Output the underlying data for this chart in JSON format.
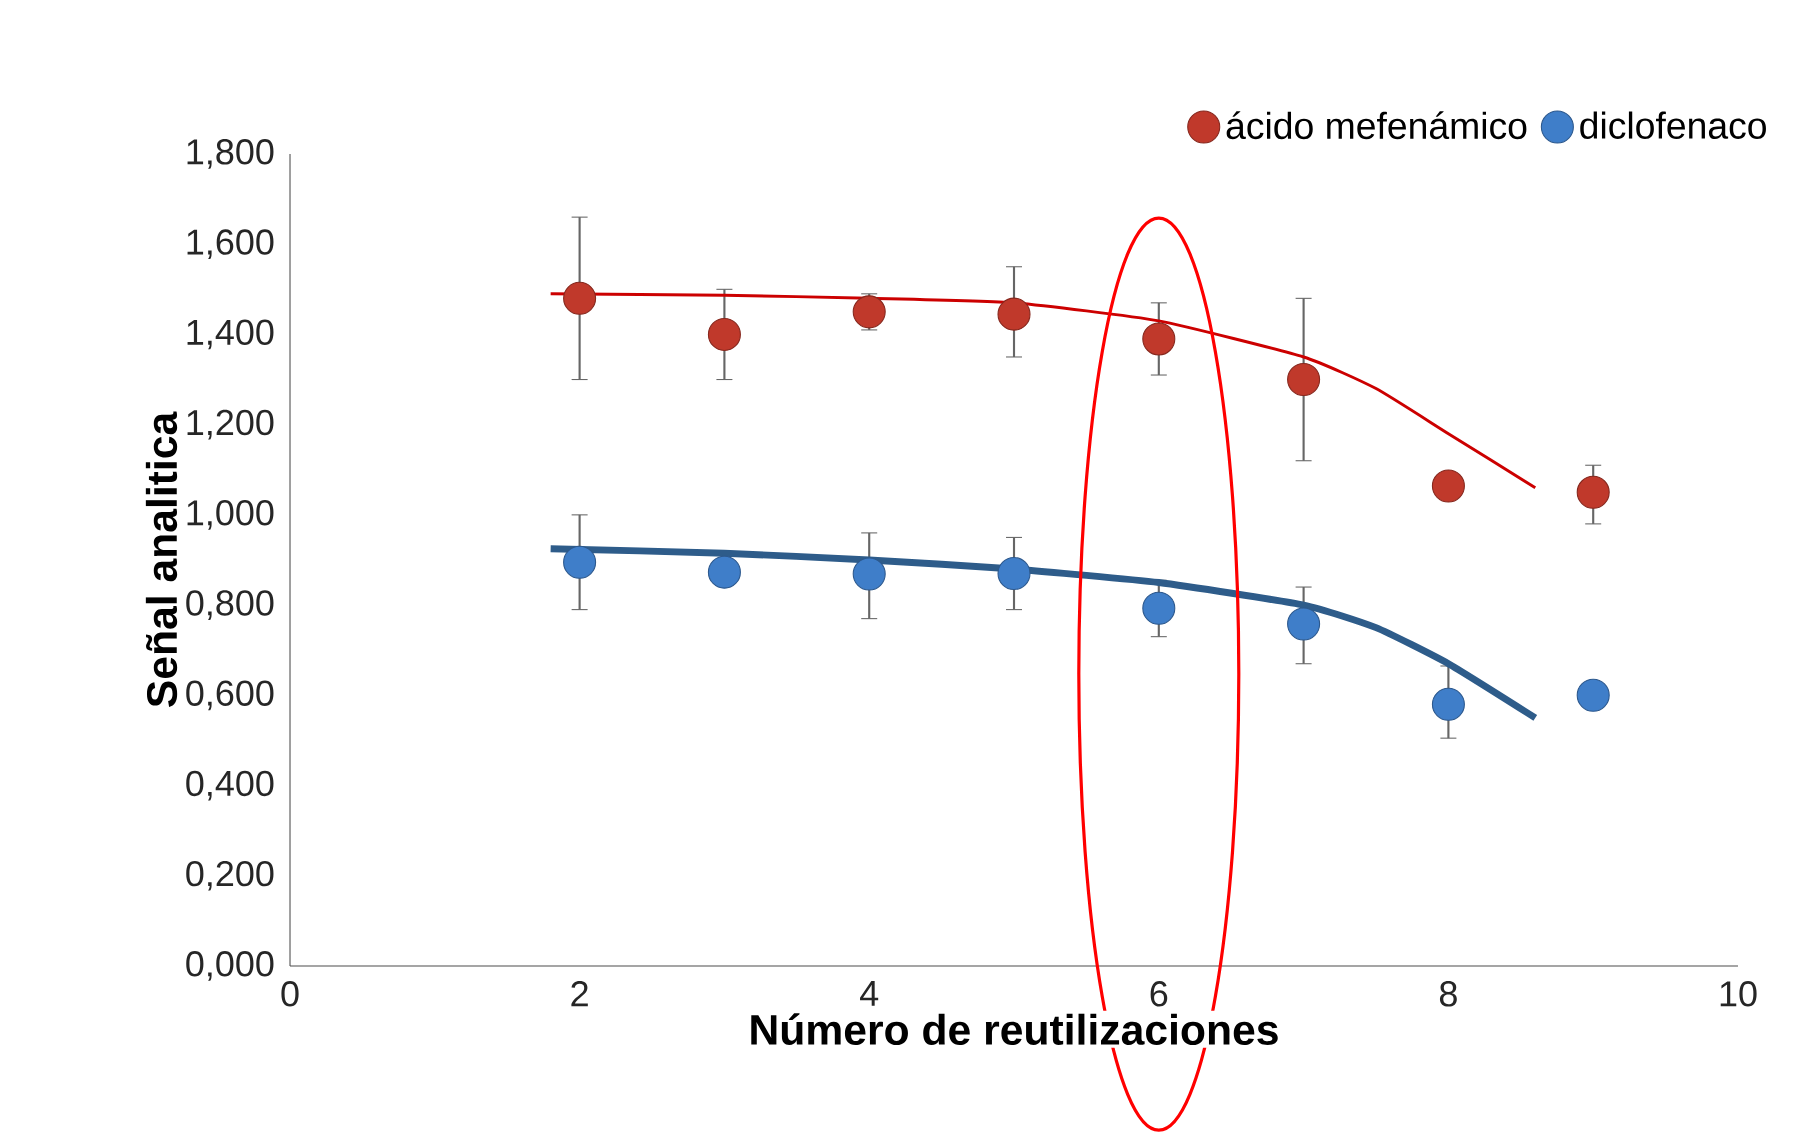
{
  "chart_data": {
    "type": "scatter",
    "xlabel": "Número de reutilizaciones",
    "ylabel": "Señal analitica",
    "xlim": [
      0,
      10
    ],
    "xticks": [
      0,
      2,
      4,
      6,
      8,
      10
    ],
    "ylim": [
      0,
      1.8
    ],
    "yticks": [
      {
        "value": 0,
        "label": "0,000"
      },
      {
        "value": 0.2,
        "label": "0,200"
      },
      {
        "value": 0.4,
        "label": "0,400"
      },
      {
        "value": 0.6,
        "label": "0,600"
      },
      {
        "value": 0.8,
        "label": "0,800"
      },
      {
        "value": 1.0,
        "label": "1,000"
      },
      {
        "value": 1.2,
        "label": "1,200"
      },
      {
        "value": 1.4,
        "label": "1,400"
      },
      {
        "value": 1.6,
        "label": "1,600"
      },
      {
        "value": 1.8,
        "label": "1,800"
      }
    ],
    "x": [
      2,
      3,
      4,
      5,
      6,
      7,
      8,
      9
    ],
    "marker": "circle",
    "legend": "top right",
    "series": [
      {
        "name": "ácido mefenámico",
        "color": "#c0392b",
        "values": [
          1.48,
          1.4,
          1.45,
          1.445,
          1.39,
          1.3,
          1.064,
          1.05
        ],
        "errors": [
          [
            1.3,
            1.66
          ],
          [
            1.3,
            1.5
          ],
          [
            1.41,
            1.49
          ],
          [
            1.35,
            1.55
          ],
          [
            1.31,
            1.47
          ],
          [
            1.12,
            1.48
          ],
          null,
          [
            0.98,
            1.11
          ]
        ]
      },
      {
        "name": "diclofenaco",
        "color": "#3f7ec9",
        "values": [
          0.895,
          0.873,
          0.869,
          0.87,
          0.793,
          0.758,
          0.58,
          0.6
        ],
        "errors": [
          [
            0.79,
            1.0
          ],
          null,
          [
            0.77,
            0.96
          ],
          [
            0.79,
            0.95
          ],
          [
            0.73,
            0.855
          ],
          [
            0.67,
            0.84
          ],
          [
            0.505,
            0.665
          ],
          null
        ]
      },
      {
        "type": "line",
        "marker": "none",
        "color": "#cc0000",
        "x": [
          1.8,
          3,
          4,
          5,
          6,
          7,
          7.5,
          8,
          8.6
        ],
        "values": [
          1.49,
          1.487,
          1.48,
          1.47,
          1.43,
          1.35,
          1.28,
          1.18,
          1.06
        ]
      },
      {
        "type": "line",
        "marker": "none",
        "color": "#2e5c8a",
        "x": [
          1.8,
          3,
          4,
          5,
          6,
          7,
          7.5,
          8,
          8.6
        ],
        "values": [
          0.925,
          0.915,
          0.9,
          0.88,
          0.85,
          0.8,
          0.75,
          0.67,
          0.55
        ]
      }
    ]
  }
}
